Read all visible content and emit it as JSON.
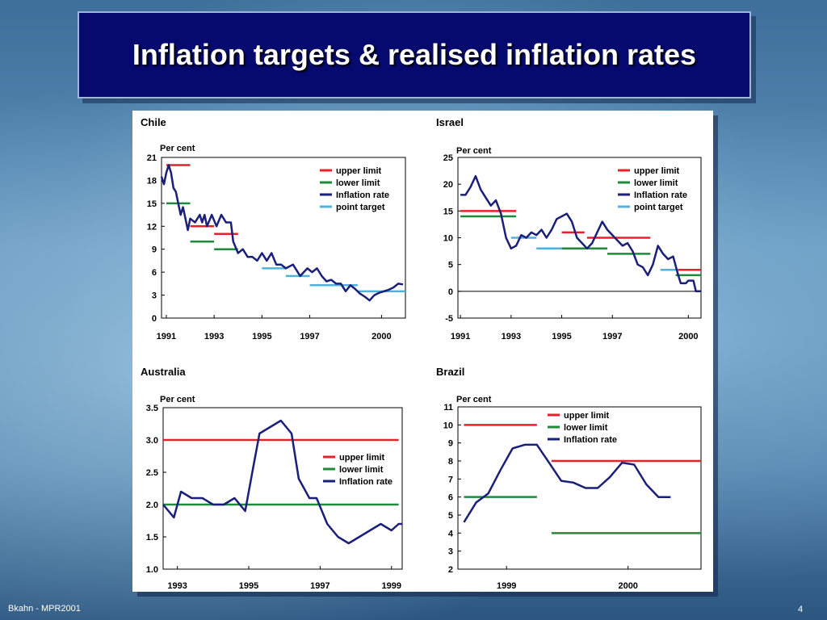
{
  "slide": {
    "title": "Inflation targets & realised inflation rates",
    "footer": "Bkahn - MPR2001",
    "page_number": "4"
  },
  "colors": {
    "upper": "#e8202a",
    "lower": "#1f8a3a",
    "rate": "#1a1f7a",
    "target": "#4fb2d8",
    "title_bg": "#060a6e"
  },
  "chart_data": [
    {
      "id": "chile",
      "title": "Chile",
      "type": "line",
      "ylabel": "Per cent",
      "ylim": [
        0,
        21
      ],
      "yticks": [
        0,
        3,
        6,
        9,
        12,
        15,
        18,
        21
      ],
      "xlim": [
        1990.8,
        2001.0
      ],
      "xticks": [
        {
          "v": 1991,
          "label": "1991"
        },
        {
          "v": 1993,
          "label": "1993"
        },
        {
          "v": 1995,
          "label": "1995"
        },
        {
          "v": 1997,
          "label": "1997"
        },
        {
          "v": 2000,
          "label": "2000"
        }
      ],
      "legend": [
        "upper limit",
        "lower limit",
        "Inflation rate",
        "point target"
      ],
      "legend_position": "top-right",
      "series": [
        {
          "kind": "upper",
          "segments": [
            [
              1991.0,
              1992.0,
              20
            ],
            [
              1992.0,
              1993.0,
              12
            ],
            [
              1993.0,
              1994.0,
              11
            ]
          ]
        },
        {
          "kind": "lower",
          "segments": [
            [
              1991.0,
              1992.0,
              15
            ],
            [
              1992.0,
              1993.0,
              10
            ],
            [
              1993.0,
              1994.0,
              9
            ]
          ]
        },
        {
          "kind": "target",
          "segments": [
            [
              1995.0,
              1996.0,
              6.5
            ],
            [
              1996.0,
              1997.0,
              5.5
            ],
            [
              1997.0,
              1999.0,
              4.3
            ],
            [
              1999.0,
              2001.0,
              3.5
            ]
          ]
        },
        {
          "kind": "rate",
          "points": [
            [
              1990.8,
              18.5
            ],
            [
              1990.9,
              17.5
            ],
            [
              1991.0,
              19.0
            ],
            [
              1991.1,
              20.0
            ],
            [
              1991.2,
              19.0
            ],
            [
              1991.3,
              17.0
            ],
            [
              1991.4,
              16.5
            ],
            [
              1991.5,
              15.0
            ],
            [
              1991.6,
              13.5
            ],
            [
              1991.7,
              14.5
            ],
            [
              1991.8,
              13.0
            ],
            [
              1991.9,
              11.5
            ],
            [
              1992.0,
              13.0
            ],
            [
              1992.2,
              12.5
            ],
            [
              1992.4,
              13.5
            ],
            [
              1992.5,
              12.5
            ],
            [
              1992.6,
              13.5
            ],
            [
              1992.7,
              12.0
            ],
            [
              1992.9,
              13.5
            ],
            [
              1993.1,
              12.0
            ],
            [
              1993.3,
              13.5
            ],
            [
              1993.5,
              12.5
            ],
            [
              1993.7,
              12.5
            ],
            [
              1993.8,
              10.0
            ],
            [
              1994.0,
              8.5
            ],
            [
              1994.2,
              9.0
            ],
            [
              1994.4,
              8.0
            ],
            [
              1994.6,
              8.0
            ],
            [
              1994.8,
              7.5
            ],
            [
              1995.0,
              8.5
            ],
            [
              1995.2,
              7.5
            ],
            [
              1995.4,
              8.5
            ],
            [
              1995.6,
              7.0
            ],
            [
              1995.8,
              7.0
            ],
            [
              1996.0,
              6.5
            ],
            [
              1996.3,
              7.0
            ],
            [
              1996.6,
              5.5
            ],
            [
              1996.9,
              6.5
            ],
            [
              1997.1,
              6.0
            ],
            [
              1997.3,
              6.5
            ],
            [
              1997.5,
              5.5
            ],
            [
              1997.7,
              4.8
            ],
            [
              1997.9,
              5.0
            ],
            [
              1998.1,
              4.5
            ],
            [
              1998.3,
              4.5
            ],
            [
              1998.5,
              3.5
            ],
            [
              1998.7,
              4.3
            ],
            [
              1998.9,
              3.8
            ],
            [
              1999.1,
              3.2
            ],
            [
              1999.3,
              2.8
            ],
            [
              1999.5,
              2.3
            ],
            [
              1999.7,
              3.0
            ],
            [
              1999.9,
              3.3
            ],
            [
              2000.1,
              3.5
            ],
            [
              2000.3,
              3.7
            ],
            [
              2000.5,
              4.0
            ],
            [
              2000.7,
              4.5
            ],
            [
              2000.9,
              4.4
            ]
          ]
        }
      ]
    },
    {
      "id": "israel",
      "title": "Israel",
      "type": "line",
      "ylabel": "Per cent",
      "ylim": [
        -5,
        25
      ],
      "yticks": [
        -5,
        0,
        5,
        10,
        15,
        20,
        25
      ],
      "xlim": [
        1990.9,
        2000.5
      ],
      "zero_line": true,
      "xticks": [
        {
          "v": 1991,
          "label": "1991"
        },
        {
          "v": 1993,
          "label": "1993"
        },
        {
          "v": 1995,
          "label": "1995"
        },
        {
          "v": 1997,
          "label": "1997"
        },
        {
          "v": 2000,
          "label": "2000"
        }
      ],
      "legend": [
        "upper limit",
        "lower limit",
        "Inflation rate",
        "point target"
      ],
      "legend_position": "top-right",
      "series": [
        {
          "kind": "upper",
          "segments": [
            [
              1991.0,
              1993.2,
              15
            ],
            [
              1995.0,
              1995.9,
              11
            ],
            [
              1996.0,
              1998.5,
              10
            ],
            [
              1999.5,
              2000.5,
              4
            ]
          ]
        },
        {
          "kind": "lower",
          "segments": [
            [
              1991.0,
              1993.2,
              14
            ],
            [
              1995.0,
              1996.8,
              8
            ],
            [
              1996.8,
              1998.5,
              7
            ],
            [
              1999.5,
              2000.5,
              3
            ]
          ]
        },
        {
          "kind": "target",
          "segments": [
            [
              1993.0,
              1994.0,
              10
            ],
            [
              1994.0,
              1995.0,
              8
            ],
            [
              1998.9,
              1999.6,
              4
            ]
          ]
        },
        {
          "kind": "rate",
          "points": [
            [
              1991.0,
              18.0
            ],
            [
              1991.2,
              18.0
            ],
            [
              1991.4,
              19.5
            ],
            [
              1991.6,
              21.5
            ],
            [
              1991.8,
              19.0
            ],
            [
              1992.0,
              17.5
            ],
            [
              1992.2,
              16.0
            ],
            [
              1992.4,
              17.0
            ],
            [
              1992.6,
              14.5
            ],
            [
              1992.8,
              10.0
            ],
            [
              1993.0,
              8.0
            ],
            [
              1993.2,
              8.5
            ],
            [
              1993.4,
              10.5
            ],
            [
              1993.6,
              10.0
            ],
            [
              1993.8,
              11.0
            ],
            [
              1994.0,
              10.5
            ],
            [
              1994.2,
              11.5
            ],
            [
              1994.4,
              10.0
            ],
            [
              1994.6,
              11.5
            ],
            [
              1994.8,
              13.5
            ],
            [
              1995.0,
              14.0
            ],
            [
              1995.2,
              14.5
            ],
            [
              1995.4,
              13.0
            ],
            [
              1995.6,
              10.0
            ],
            [
              1995.8,
              9.0
            ],
            [
              1996.0,
              8.0
            ],
            [
              1996.2,
              9.0
            ],
            [
              1996.4,
              11.0
            ],
            [
              1996.6,
              13.0
            ],
            [
              1996.8,
              11.5
            ],
            [
              1997.0,
              10.5
            ],
            [
              1997.2,
              9.5
            ],
            [
              1997.4,
              8.5
            ],
            [
              1997.6,
              9.0
            ],
            [
              1997.8,
              7.5
            ],
            [
              1998.0,
              5.0
            ],
            [
              1998.2,
              4.5
            ],
            [
              1998.4,
              3.0
            ],
            [
              1998.6,
              5.0
            ],
            [
              1998.8,
              8.5
            ],
            [
              1999.0,
              7.0
            ],
            [
              1999.2,
              6.0
            ],
            [
              1999.4,
              6.5
            ],
            [
              1999.6,
              3.0
            ],
            [
              1999.7,
              1.5
            ],
            [
              1999.9,
              1.5
            ],
            [
              2000.0,
              2.0
            ],
            [
              2000.2,
              2.0
            ],
            [
              2000.3,
              0.0
            ],
            [
              2000.5,
              0.0
            ]
          ]
        }
      ]
    },
    {
      "id": "australia",
      "title": "Australia",
      "type": "line",
      "ylabel": "Per cent",
      "ylim": [
        1.0,
        3.5
      ],
      "yticks": [
        1.0,
        1.5,
        2.0,
        2.5,
        3.0,
        3.5
      ],
      "ytick_labels": [
        "1.0",
        "1.5",
        "2.0",
        "2.5",
        "3.0",
        "3.5"
      ],
      "xlim": [
        1992.6,
        1999.3
      ],
      "xticks": [
        {
          "v": 1993,
          "label": "1993"
        },
        {
          "v": 1995,
          "label": "1995"
        },
        {
          "v": 1997,
          "label": "1997"
        },
        {
          "v": 1999,
          "label": "1999"
        }
      ],
      "legend": [
        "upper limit",
        "lower limit",
        "Inflation rate"
      ],
      "legend_position": "center-right",
      "series": [
        {
          "kind": "upper",
          "segments": [
            [
              1992.6,
              1999.2,
              3.0
            ]
          ]
        },
        {
          "kind": "lower",
          "segments": [
            [
              1992.6,
              1999.2,
              2.0
            ]
          ]
        },
        {
          "kind": "rate",
          "points": [
            [
              1992.6,
              2.0
            ],
            [
              1992.9,
              1.8
            ],
            [
              1993.1,
              2.2
            ],
            [
              1993.4,
              2.1
            ],
            [
              1993.7,
              2.1
            ],
            [
              1994.0,
              2.0
            ],
            [
              1994.3,
              2.0
            ],
            [
              1994.6,
              2.1
            ],
            [
              1994.9,
              1.9
            ],
            [
              1995.1,
              2.5
            ],
            [
              1995.3,
              3.1
            ],
            [
              1995.6,
              3.2
            ],
            [
              1995.9,
              3.3
            ],
            [
              1996.2,
              3.1
            ],
            [
              1996.4,
              2.4
            ],
            [
              1996.7,
              2.1
            ],
            [
              1996.9,
              2.1
            ],
            [
              1997.2,
              1.7
            ],
            [
              1997.5,
              1.5
            ],
            [
              1997.8,
              1.4
            ],
            [
              1998.1,
              1.5
            ],
            [
              1998.4,
              1.6
            ],
            [
              1998.7,
              1.7
            ],
            [
              1999.0,
              1.6
            ],
            [
              1999.2,
              1.7
            ],
            [
              1999.3,
              1.7
            ]
          ]
        }
      ]
    },
    {
      "id": "brazil",
      "title": "Brazil",
      "type": "line",
      "ylabel": "Per cent",
      "ylim": [
        2,
        11
      ],
      "yticks": [
        2,
        3,
        4,
        5,
        6,
        7,
        8,
        9,
        10,
        11
      ],
      "xlim": [
        1998.95,
        2000.95
      ],
      "xticks": [
        {
          "v": 1999.35,
          "label": "1999"
        },
        {
          "v": 2000.35,
          "label": "2000"
        }
      ],
      "legend": [
        "upper limit",
        "lower limit",
        "Inflation rate"
      ],
      "legend_position": "top-right",
      "series": [
        {
          "kind": "upper",
          "segments": [
            [
              1999.0,
              1999.6,
              10
            ],
            [
              1999.72,
              2000.95,
              8
            ]
          ]
        },
        {
          "kind": "lower",
          "segments": [
            [
              1999.0,
              1999.6,
              6
            ],
            [
              1999.72,
              2000.95,
              4
            ]
          ]
        },
        {
          "kind": "rate",
          "points": [
            [
              1999.0,
              4.6
            ],
            [
              1999.1,
              5.7
            ],
            [
              1999.2,
              6.2
            ],
            [
              1999.3,
              7.5
            ],
            [
              1999.4,
              8.7
            ],
            [
              1999.5,
              8.9
            ],
            [
              1999.6,
              8.9
            ],
            [
              1999.7,
              7.9
            ],
            [
              1999.8,
              6.9
            ],
            [
              1999.9,
              6.8
            ],
            [
              2000.0,
              6.5
            ],
            [
              2000.1,
              6.5
            ],
            [
              2000.2,
              7.1
            ],
            [
              2000.3,
              7.9
            ],
            [
              2000.4,
              7.8
            ],
            [
              2000.5,
              6.7
            ],
            [
              2000.6,
              6.0
            ],
            [
              2000.7,
              6.0
            ]
          ]
        }
      ]
    }
  ]
}
